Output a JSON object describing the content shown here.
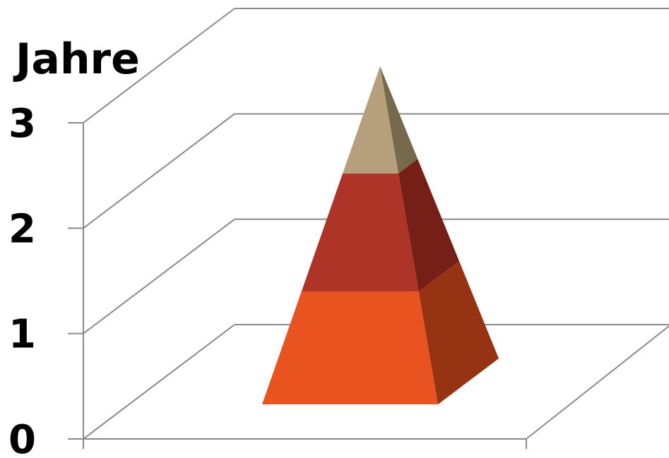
{
  "chart_data": {
    "type": "pyramid-3d",
    "title": "",
    "xlabel": "",
    "ylabel": "Jahre",
    "ylim": [
      0,
      3
    ],
    "y_ticks": [
      "0",
      "1",
      "2",
      "3"
    ],
    "grid": true,
    "stack": [
      {
        "from": 0,
        "to": 1.0,
        "color": "#e8531f",
        "side_color": "#963313"
      },
      {
        "from": 1.0,
        "to": 2.05,
        "color": "#ae3427",
        "side_color": "#761f16"
      },
      {
        "from": 2.05,
        "to": 3.0,
        "color": "#b5a07b",
        "side_color": "#776a4c"
      }
    ]
  }
}
